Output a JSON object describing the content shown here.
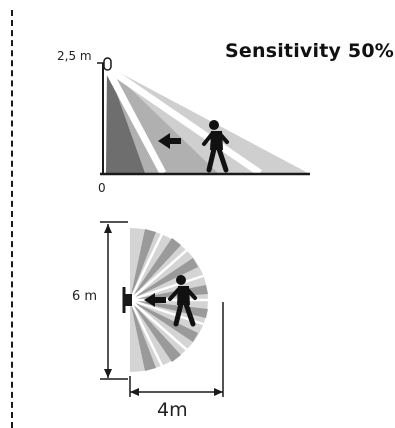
{
  "title": "Sensitivity 50%",
  "side_view": {
    "height_label": "2,5 m",
    "origin_label": "0"
  },
  "top_view": {
    "range_label": "6 m",
    "distance_label": "4m"
  }
}
